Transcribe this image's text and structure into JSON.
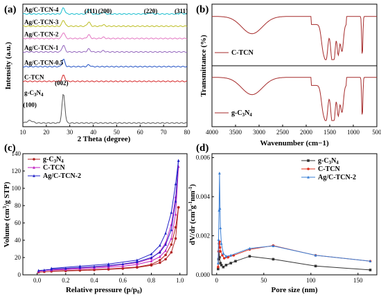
{
  "chart_data": [
    {
      "panel": "(a)",
      "type": "line",
      "xlabel": "2 Theta (degree)",
      "ylabel": "Intensity (a.u.)",
      "xlim": [
        10,
        80
      ],
      "xticks": [
        "10",
        "20",
        "30",
        "40",
        "50",
        "60",
        "70",
        "80"
      ],
      "annotations": [
        {
          "text": "(111)",
          "x": 39
        },
        {
          "text": "(200)",
          "x": 45
        },
        {
          "text": "(220)",
          "x": 64.5
        },
        {
          "text": "(311)",
          "x": 77.5
        },
        {
          "text": "(002)",
          "x": 26.5
        },
        {
          "text": "(100)",
          "x": 13
        }
      ],
      "series": [
        {
          "name": "Ag/C-TCN-4",
          "color": "#17becf",
          "offset": 0.92,
          "peaks": [
            [
              27.3,
              0.05
            ],
            [
              38.1,
              0.04
            ],
            [
              44.3,
              0.015
            ],
            [
              64.5,
              0.01
            ],
            [
              77.4,
              0.01
            ]
          ]
        },
        {
          "name": "Ag/C-TCN-3",
          "color": "#bcbd22",
          "offset": 0.82,
          "peaks": [
            [
              27.3,
              0.05
            ],
            [
              38.1,
              0.035
            ],
            [
              44.3,
              0.012
            ]
          ]
        },
        {
          "name": "Ag/C-TCN-2",
          "color": "#e377c2",
          "offset": 0.72,
          "peaks": [
            [
              27.3,
              0.05
            ],
            [
              38.1,
              0.03
            ],
            [
              44.3,
              0.01
            ]
          ]
        },
        {
          "name": "Ag/C-TCN-1",
          "color": "#9467bd",
          "offset": 0.61,
          "peaks": [
            [
              27.3,
              0.055
            ],
            [
              38.1,
              0.025
            ],
            [
              44.3,
              0.01
            ]
          ]
        },
        {
          "name": "Ag/C-TCN-0.5",
          "color": "#1f4fc4",
          "offset": 0.49,
          "peaks": [
            [
              27.3,
              0.06
            ],
            [
              38.1,
              0.015
            ]
          ]
        },
        {
          "name": "C-TCN",
          "color": "#d62728",
          "offset": 0.37,
          "peaks": [
            [
              27.3,
              0.05
            ]
          ]
        },
        {
          "name": "g-C3N4",
          "color": "#555555",
          "offset": 0.03,
          "peaks": [
            [
              13.0,
              0.02
            ],
            [
              27.3,
              0.24
            ]
          ]
        }
      ]
    },
    {
      "panel": "(b)",
      "type": "line",
      "xlabel": "Wavenumber (cm−1)",
      "ylabel": "Transmittance (%)",
      "xlim": [
        4000,
        500
      ],
      "xticks": [
        "4000",
        "3500",
        "3000",
        "2500",
        "2000",
        "1500",
        "1000",
        "500"
      ],
      "series": [
        {
          "name": "C-TCN",
          "color": "#a52a2a"
        },
        {
          "name": "g-C3N4",
          "color": "#a52a2a"
        }
      ]
    },
    {
      "panel": "(c)",
      "type": "line",
      "xlabel": "Relative pressure (p/p0)",
      "ylabel": "Volume (cm3/g STP)",
      "xlim": [
        -0.1,
        1.05
      ],
      "ylim": [
        0,
        140
      ],
      "xticks": [
        "0.0",
        "0.2",
        "0.4",
        "0.6",
        "0.8",
        "1.0"
      ],
      "yticks": [
        "0",
        "20",
        "40",
        "60",
        "80",
        "100",
        "120",
        "140"
      ],
      "series": [
        {
          "name": "g-C3N4",
          "color": "#b22222",
          "marker": "circle",
          "adsorption": [
            [
              0.01,
              3
            ],
            [
              0.05,
              3.5
            ],
            [
              0.1,
              4
            ],
            [
              0.2,
              4.5
            ],
            [
              0.3,
              5
            ],
            [
              0.4,
              5.6
            ],
            [
              0.5,
              6.3
            ],
            [
              0.6,
              7.2
            ],
            [
              0.7,
              8.5
            ],
            [
              0.8,
              11
            ],
            [
              0.86,
              14
            ],
            [
              0.9,
              18
            ],
            [
              0.94,
              26
            ],
            [
              0.97,
              42
            ],
            [
              0.99,
              78
            ]
          ],
          "desorption": [
            [
              0.99,
              78
            ],
            [
              0.97,
              55
            ],
            [
              0.94,
              35
            ],
            [
              0.9,
              23
            ],
            [
              0.86,
              17
            ],
            [
              0.8,
              12
            ],
            [
              0.7,
              9
            ],
            [
              0.5,
              6.8
            ],
            [
              0.3,
              5.5
            ],
            [
              0.1,
              4.3
            ]
          ]
        },
        {
          "name": "C-TCN",
          "color": "#c020c0",
          "marker": "triangle",
          "adsorption": [
            [
              0.01,
              4
            ],
            [
              0.05,
              5
            ],
            [
              0.1,
              5.5
            ],
            [
              0.2,
              6.2
            ],
            [
              0.3,
              7
            ],
            [
              0.4,
              7.8
            ],
            [
              0.5,
              8.8
            ],
            [
              0.6,
              10
            ],
            [
              0.7,
              12
            ],
            [
              0.8,
              16
            ],
            [
              0.86,
              21
            ],
            [
              0.9,
              28
            ],
            [
              0.94,
              42
            ],
            [
              0.97,
              70
            ],
            [
              0.99,
              125
            ]
          ],
          "desorption": [
            [
              0.99,
              125
            ],
            [
              0.97,
              90
            ],
            [
              0.94,
              58
            ],
            [
              0.9,
              37
            ],
            [
              0.86,
              27
            ],
            [
              0.8,
              19
            ],
            [
              0.7,
              14
            ],
            [
              0.5,
              10
            ],
            [
              0.3,
              8
            ],
            [
              0.1,
              6
            ]
          ]
        },
        {
          "name": "Ag/C-TCN-2",
          "color": "#2020c8",
          "marker": "triangle",
          "adsorption": [
            [
              0.01,
              5
            ],
            [
              0.05,
              5.5
            ],
            [
              0.1,
              6.5
            ],
            [
              0.2,
              7.5
            ],
            [
              0.3,
              8.5
            ],
            [
              0.4,
              9.5
            ],
            [
              0.5,
              10.8
            ],
            [
              0.6,
              12.5
            ],
            [
              0.7,
              15
            ],
            [
              0.8,
              20
            ],
            [
              0.86,
              26
            ],
            [
              0.9,
              35
            ],
            [
              0.94,
              52
            ],
            [
              0.97,
              85
            ],
            [
              0.99,
              132
            ]
          ],
          "desorption": [
            [
              0.99,
              132
            ],
            [
              0.97,
              105
            ],
            [
              0.94,
              72
            ],
            [
              0.9,
              48
            ],
            [
              0.86,
              34
            ],
            [
              0.8,
              24
            ],
            [
              0.7,
              17
            ],
            [
              0.5,
              12.5
            ],
            [
              0.3,
              10
            ],
            [
              0.1,
              7.5
            ]
          ]
        }
      ]
    },
    {
      "panel": "(d)",
      "type": "line",
      "xlabel": "Pore size (nm)",
      "ylabel": "dV/dr (cm3g-1nm-1)",
      "xlim": [
        -5,
        170
      ],
      "ylim": [
        0,
        0.0062
      ],
      "xticks": [
        "0",
        "50",
        "100",
        "150"
      ],
      "yticks": [
        "0.000",
        "0.002",
        "0.004",
        "0.006"
      ],
      "series": [
        {
          "name": "g-C3N4",
          "color": "#333333",
          "marker": "square",
          "points": [
            [
              1.5,
              0.0003
            ],
            [
              2,
              0.0008
            ],
            [
              2.5,
              0.0012
            ],
            [
              3,
              0.0009
            ],
            [
              4,
              0.0006
            ],
            [
              5,
              0.0005
            ],
            [
              7,
              0.0004
            ],
            [
              10,
              0.0005
            ],
            [
              15,
              0.0006
            ],
            [
              20,
              0.0007
            ],
            [
              35,
              0.00095
            ],
            [
              60,
              0.0008
            ],
            [
              105,
              0.00045
            ],
            [
              163,
              0.00025
            ]
          ]
        },
        {
          "name": "C-TCN",
          "color": "#e0301e",
          "marker": "circle",
          "points": [
            [
              1.5,
              0.0004
            ],
            [
              2,
              0.0012
            ],
            [
              2.5,
              0.0016
            ],
            [
              3,
              0.0017
            ],
            [
              3.5,
              0.0014
            ],
            [
              4,
              0.0012
            ],
            [
              6,
              0.001
            ],
            [
              8,
              0.00085
            ],
            [
              12,
              0.0009
            ],
            [
              18,
              0.001
            ],
            [
              35,
              0.0013
            ],
            [
              60,
              0.0015
            ],
            [
              105,
              0.001
            ],
            [
              163,
              0.0007
            ]
          ]
        },
        {
          "name": "Ag/C-TCN-2",
          "color": "#3a7fd5",
          "marker": "triangle",
          "points": [
            [
              1.5,
              0.0006
            ],
            [
              2,
              0.0018
            ],
            [
              2.5,
              0.0033
            ],
            [
              3,
              0.0052
            ],
            [
              3.5,
              0.0034
            ],
            [
              4,
              0.0024
            ],
            [
              5,
              0.0016
            ],
            [
              7,
              0.0011
            ],
            [
              10,
              0.00095
            ],
            [
              15,
              0.001
            ],
            [
              35,
              0.00135
            ],
            [
              60,
              0.00148
            ],
            [
              105,
              0.001
            ],
            [
              163,
              0.0007
            ]
          ]
        }
      ]
    }
  ]
}
